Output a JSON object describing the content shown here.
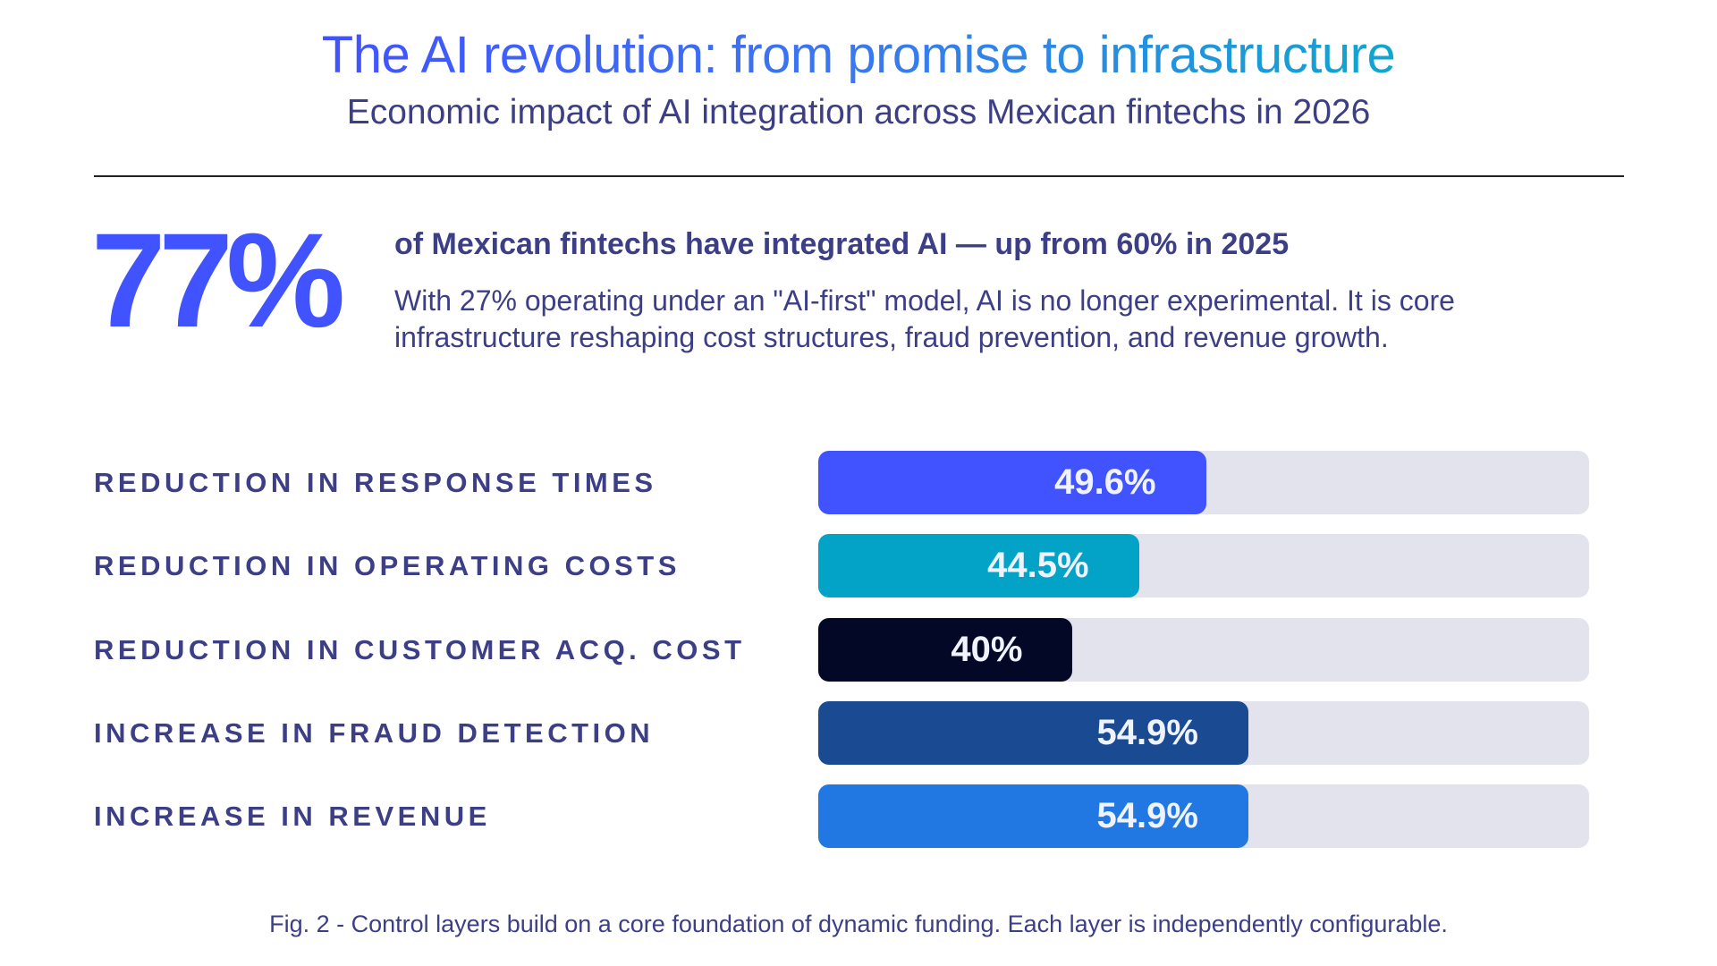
{
  "header": {
    "title": "The AI revolution: from promise to infrastructure",
    "subtitle": "Economic impact of AI integration across Mexican fintechs in 2026"
  },
  "highlight": {
    "stat": "77%",
    "headline": "of Mexican fintechs have integrated AI — up from 60% in 2025",
    "body": "With 27% operating under an \"AI-first\" model, AI is no longer experimental. It is core infrastructure reshaping cost structures, fraud prevention, and revenue growth."
  },
  "chart_data": {
    "type": "bar",
    "orientation": "horizontal",
    "categories": [
      "REDUCTION IN RESPONSE TIMES",
      "REDUCTION IN OPERATING COSTS",
      "REDUCTION IN CUSTOMER ACQ. COST",
      "INCREASE IN FRAUD DETECTION",
      "INCREASE IN REVENUE"
    ],
    "values": [
      49.6,
      44.5,
      40,
      54.9,
      54.9
    ],
    "value_labels": [
      "49.6%",
      "44.5%",
      "40%",
      "54.9%",
      "54.9%"
    ],
    "colors": [
      "#4152ff",
      "#03a3c8",
      "#020826",
      "#1a4a91",
      "#2278e2"
    ],
    "track_color": "#e3e3ee",
    "grid": false
  },
  "caption": "Fig. 2 - Control layers build on a core foundation of dynamic funding. Each layer is independently configurable."
}
